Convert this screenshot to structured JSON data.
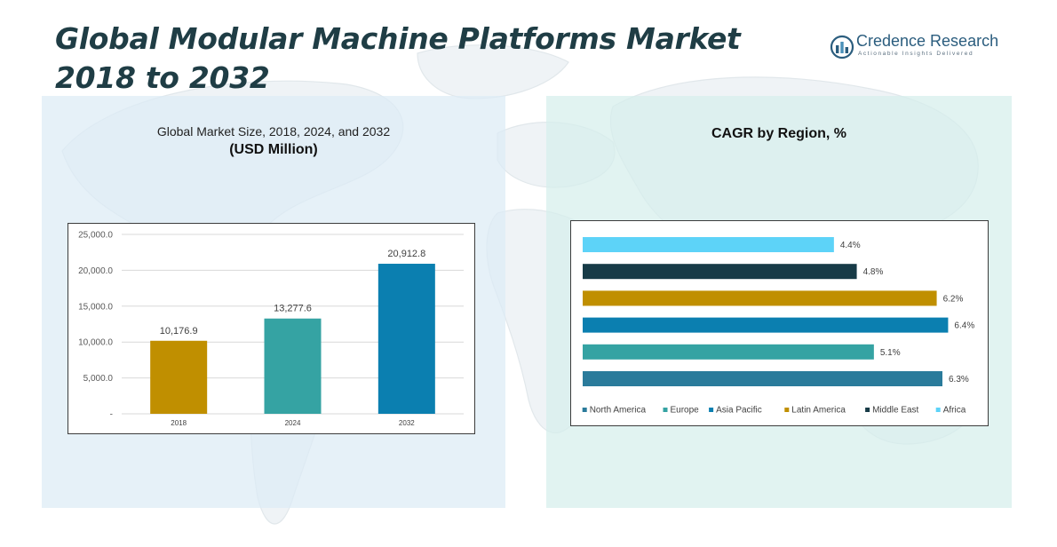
{
  "header": {
    "title": "Global Modular Machine Platforms Market 2018 to 2032",
    "logo_name": "Credence Research",
    "logo_tagline": "Actionable Insights Delivered"
  },
  "left_panel": {
    "title": "Global Market Size, 2018, 2024, and 2032",
    "unit": "(USD Million)"
  },
  "right_panel": {
    "title": "CAGR by Region, %"
  },
  "colors": {
    "title": "#1f3d45",
    "c2018": "#c08f00",
    "c2024": "#35a3a3",
    "c2032": "#0b7fb0",
    "north_america": "#2a7b9b",
    "europe": "#35a3a3",
    "asia_pacific": "#0b7fb0",
    "latin_america": "#c08f00",
    "middle_east": "#173b47",
    "africa": "#5dd3f8"
  },
  "chart_data": [
    {
      "type": "bar",
      "title": "Global Market Size, 2018, 2024, and 2032",
      "ylabel": "(USD Million)",
      "categories": [
        "2018",
        "2024",
        "2032"
      ],
      "values": [
        10176.9,
        13277.6,
        20912.8
      ],
      "value_labels": [
        "10,176.9",
        "13,277.6",
        "20,912.8"
      ],
      "colors": [
        "#c08f00",
        "#35a3a3",
        "#0b7fb0"
      ],
      "ylim": [
        0,
        25000
      ],
      "yticks": [
        0,
        5000,
        10000,
        15000,
        20000,
        25000
      ],
      "ytick_labels": [
        "-",
        "5,000.0",
        "10,000.0",
        "15,000.0",
        "20,000.0",
        "25,000.0"
      ],
      "grid": true
    },
    {
      "type": "bar",
      "orientation": "horizontal",
      "title": "CAGR by Region, %",
      "categories": [
        "North America",
        "Europe",
        "Asia Pacific",
        "Latin America",
        "Middle East",
        "Africa"
      ],
      "values": [
        6.3,
        5.1,
        6.4,
        6.2,
        4.8,
        4.4
      ],
      "value_labels": [
        "6.3%",
        "5.1%",
        "6.4%",
        "6.2%",
        "4.8%",
        "4.4%"
      ],
      "colors": [
        "#2a7b9b",
        "#35a3a3",
        "#0b7fb0",
        "#c08f00",
        "#173b47",
        "#5dd3f8"
      ],
      "xlim": [
        0,
        7
      ],
      "legend": "bottom",
      "grid": false
    }
  ]
}
